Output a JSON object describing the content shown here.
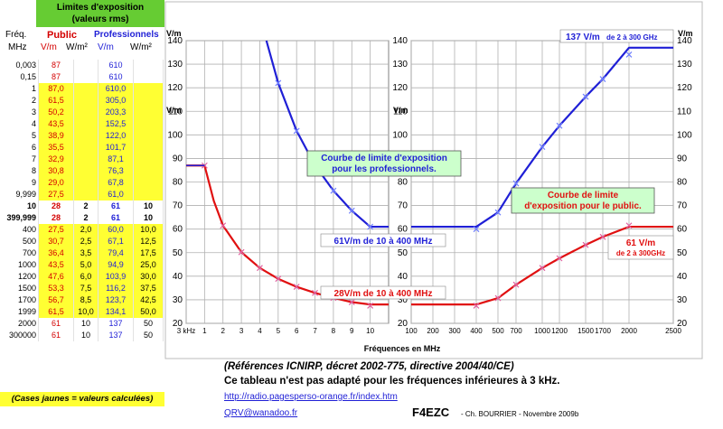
{
  "table": {
    "title_line1": "Limites d'exposition",
    "title_line2": "(valeurs rms)",
    "head_freq1": "Fréq.",
    "head_freq2": "MHz",
    "head_public": "Public",
    "head_pro": "Professionnels",
    "unit_vm_pub": "V/m",
    "unit_wm_pub": "W/m²",
    "unit_vm_pro": "V/m",
    "unit_wm_pro": "W/m²",
    "rows": [
      {
        "f": "0,003",
        "pv": "87",
        "pw": "",
        "rv": "610",
        "rw": "",
        "yellow": false,
        "bold": false
      },
      {
        "f": "0,15",
        "pv": "87",
        "pw": "",
        "rv": "610",
        "rw": "",
        "yellow": false,
        "bold": false
      },
      {
        "f": "1",
        "pv": "87,0",
        "pw": "",
        "rv": "610,0",
        "rw": "",
        "yellow": true,
        "bold": false
      },
      {
        "f": "2",
        "pv": "61,5",
        "pw": "",
        "rv": "305,0",
        "rw": "",
        "yellow": true,
        "bold": false
      },
      {
        "f": "3",
        "pv": "50,2",
        "pw": "",
        "rv": "203,3",
        "rw": "",
        "yellow": true,
        "bold": false
      },
      {
        "f": "4",
        "pv": "43,5",
        "pw": "",
        "rv": "152,5",
        "rw": "",
        "yellow": true,
        "bold": false
      },
      {
        "f": "5",
        "pv": "38,9",
        "pw": "",
        "rv": "122,0",
        "rw": "",
        "yellow": true,
        "bold": false
      },
      {
        "f": "6",
        "pv": "35,5",
        "pw": "",
        "rv": "101,7",
        "rw": "",
        "yellow": true,
        "bold": false
      },
      {
        "f": "7",
        "pv": "32,9",
        "pw": "",
        "rv": "87,1",
        "rw": "",
        "yellow": true,
        "bold": false
      },
      {
        "f": "8",
        "pv": "30,8",
        "pw": "",
        "rv": "76,3",
        "rw": "",
        "yellow": true,
        "bold": false
      },
      {
        "f": "9",
        "pv": "29,0",
        "pw": "",
        "rv": "67,8",
        "rw": "",
        "yellow": true,
        "bold": false
      },
      {
        "f": "9,999",
        "pv": "27,5",
        "pw": "",
        "rv": "61,0",
        "rw": "",
        "yellow": true,
        "bold": false
      },
      {
        "f": "10",
        "pv": "28",
        "pw": "2",
        "rv": "61",
        "rw": "10",
        "yellow": false,
        "bold": true
      },
      {
        "f": "399,999",
        "pv": "28",
        "pw": "2",
        "rv": "61",
        "rw": "10",
        "yellow": false,
        "bold": true
      },
      {
        "f": "400",
        "pv": "27,5",
        "pw": "2,0",
        "rv": "60,0",
        "rw": "10,0",
        "yellow": true,
        "bold": false
      },
      {
        "f": "500",
        "pv": "30,7",
        "pw": "2,5",
        "rv": "67,1",
        "rw": "12,5",
        "yellow": true,
        "bold": false
      },
      {
        "f": "700",
        "pv": "36,4",
        "pw": "3,5",
        "rv": "79,4",
        "rw": "17,5",
        "yellow": true,
        "bold": false
      },
      {
        "f": "1000",
        "pv": "43,5",
        "pw": "5,0",
        "rv": "94,9",
        "rw": "25,0",
        "yellow": true,
        "bold": false
      },
      {
        "f": "1200",
        "pv": "47,6",
        "pw": "6,0",
        "rv": "103,9",
        "rw": "30,0",
        "yellow": true,
        "bold": false
      },
      {
        "f": "1500",
        "pv": "53,3",
        "pw": "7,5",
        "rv": "116,2",
        "rw": "37,5",
        "yellow": true,
        "bold": false
      },
      {
        "f": "1700",
        "pv": "56,7",
        "pw": "8,5",
        "rv": "123,7",
        "rw": "42,5",
        "yellow": true,
        "bold": false
      },
      {
        "f": "1999",
        "pv": "61,5",
        "pw": "10,0",
        "rv": "134,1",
        "rw": "50,0",
        "yellow": true,
        "bold": false
      },
      {
        "f": "2000",
        "pv": "61",
        "pw": "10",
        "rv": "137",
        "rw": "50",
        "yellow": false,
        "bold": false
      },
      {
        "f": "300000",
        "pv": "61",
        "pw": "10",
        "rv": "137",
        "rw": "50",
        "yellow": false,
        "bold": false
      }
    ],
    "yellow_note": "(Cases jaunes = valeurs calculées)"
  },
  "chart_data": [
    {
      "type": "line",
      "panel": "left",
      "ylabel": "V/m",
      "xlim": [
        0,
        11
      ],
      "ylim": [
        20,
        140
      ],
      "xticks": [
        "3 kHz",
        "1",
        "2",
        "3",
        "4",
        "5",
        "6",
        "7",
        "8",
        "9",
        "10"
      ],
      "yticks": [
        20,
        30,
        40,
        50,
        60,
        70,
        80,
        90,
        100,
        110,
        120,
        130,
        140
      ],
      "grid": true,
      "series": [
        {
          "color": "#e01010",
          "markers_x": [
            1,
            2,
            3,
            4,
            5,
            6,
            7,
            8,
            9,
            10
          ],
          "markers_y": [
            87,
            61.5,
            50.2,
            43.5,
            38.9,
            35.5,
            32.9,
            30.8,
            29,
            27.5
          ],
          "line_x": [
            0,
            1,
            1.5,
            2,
            3,
            4,
            5,
            6,
            7,
            8,
            9,
            10,
            11
          ],
          "line_y": [
            87,
            87,
            72,
            61.5,
            50.2,
            43.5,
            38.9,
            35.5,
            32.9,
            30.8,
            29,
            28,
            28
          ]
        },
        {
          "color": "#1f1fd6",
          "markers_x": [
            5,
            6,
            7,
            8,
            9,
            10
          ],
          "markers_y": [
            122,
            101.7,
            87.1,
            76.3,
            67.8,
            61
          ],
          "line_x": [
            4.36,
            5,
            6,
            7,
            8,
            9,
            10,
            11
          ],
          "line_y": [
            140,
            122,
            101.7,
            87.1,
            76.3,
            67.8,
            61,
            61
          ],
          "flat_x": [
            0,
            1
          ],
          "flat_y": [
            87,
            87
          ]
        }
      ]
    },
    {
      "type": "line",
      "panel": "right",
      "ylabel": "V/m",
      "xlabel": "Fréquences en MHz",
      "xlim": [
        100,
        2500
      ],
      "ylim": [
        20,
        140
      ],
      "xticks": [
        100,
        200,
        300,
        400,
        500,
        700,
        1000,
        1200,
        1500,
        1700,
        2000,
        2500
      ],
      "xtick_labels": [
        "100",
        "200",
        "300",
        "400",
        "500",
        "700",
        "1000",
        "1200",
        "1500",
        "1700",
        "2000",
        "2500"
      ],
      "yticks": [
        20,
        30,
        40,
        50,
        60,
        70,
        80,
        90,
        100,
        110,
        120,
        130,
        140
      ],
      "grid": true,
      "series": [
        {
          "color": "#e01010",
          "markers_x": [
            400,
            500,
            700,
            1000,
            1200,
            1500,
            1700,
            2000
          ],
          "markers_y": [
            27.5,
            30.7,
            36.4,
            43.5,
            47.6,
            53.3,
            56.7,
            61.5
          ],
          "line_x": [
            100,
            400,
            500,
            700,
            1000,
            1200,
            1500,
            1700,
            2000,
            2500
          ],
          "line_y": [
            28,
            28,
            30.7,
            36.4,
            43.5,
            47.6,
            53.3,
            56.7,
            61,
            61
          ]
        },
        {
          "color": "#1f1fd6",
          "markers_x": [
            400,
            500,
            700,
            1000,
            1200,
            1500,
            1700,
            2000
          ],
          "markers_y": [
            60,
            67.1,
            79.4,
            94.9,
            103.9,
            116.2,
            123.7,
            134.1
          ],
          "line_x": [
            100,
            400,
            500,
            700,
            1000,
            1200,
            1500,
            1700,
            2000,
            2500
          ],
          "line_y": [
            61,
            61,
            67.1,
            79.4,
            94.9,
            103.9,
            116.2,
            123.7,
            137,
            137
          ]
        }
      ]
    }
  ],
  "annotations": {
    "pro_box_l1": "Courbe de limite d'exposition",
    "pro_box_l2": "pour les professionnels.",
    "pub_box_l1": "Courbe de limite",
    "pub_box_l2": "d'exposition pour le public.",
    "label_61": "61V/m de 10 à 400 MHz",
    "label_28": "28V/m de 10 à 400 MHz",
    "label_137a": "137 V/m",
    "label_137b": "de 2 à 300 GHz",
    "label_61r_a": "61 V/m",
    "label_61r_b": "de 2 à 300GHz"
  },
  "footer": {
    "ref": "(Références ICNIRP, décret 2002-775, directive 2004/40/CE)",
    "note": "Ce tableau n'est pas adapté pour les fréquences inférieures à 3 kHz.",
    "url": "http://radio.pagesperso-orange.fr/index.htm",
    "mail": "QRV@wanadoo.fr",
    "call": "F4EZC",
    "credit": "- Ch. BOURRIER - Novembre 2009b"
  },
  "colors": {
    "public": "#e01010",
    "pro": "#1f1fd6",
    "yellow": "#ffff33",
    "green": "#66cc33"
  }
}
